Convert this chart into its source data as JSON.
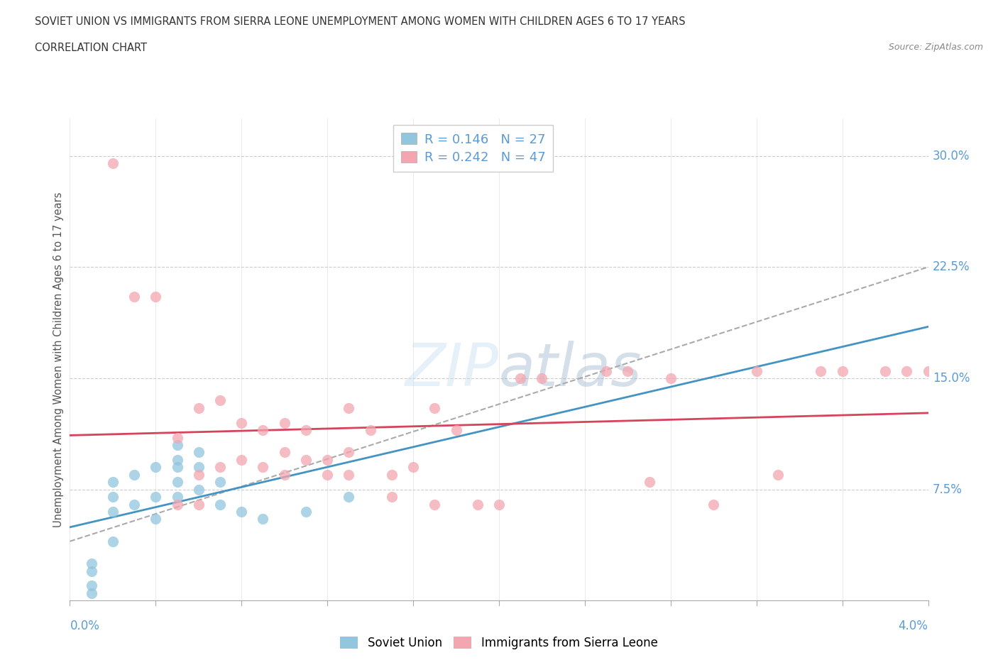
{
  "title_line1": "SOVIET UNION VS IMMIGRANTS FROM SIERRA LEONE UNEMPLOYMENT AMONG WOMEN WITH CHILDREN AGES 6 TO 17 YEARS",
  "title_line2": "CORRELATION CHART",
  "source": "Source: ZipAtlas.com",
  "xlabel_bottom_left": "0.0%",
  "xlabel_bottom_right": "4.0%",
  "ylabel": "Unemployment Among Women with Children Ages 6 to 17 years",
  "ytick_labels": [
    "30.0%",
    "22.5%",
    "15.0%",
    "7.5%"
  ],
  "ytick_values": [
    0.3,
    0.225,
    0.15,
    0.075
  ],
  "xmin": 0.0,
  "xmax": 0.04,
  "ymin": 0.0,
  "ymax": 0.325,
  "watermark": "ZIPatlas",
  "legend_soviet_r": "0.146",
  "legend_soviet_n": "27",
  "legend_sierra_r": "0.242",
  "legend_sierra_n": "47",
  "soviet_color": "#92c5de",
  "sierra_color": "#f4a6b0",
  "soviet_line_color": "#4393c3",
  "sierra_line_color": "#d6435a",
  "dashed_line_color": "#aaaaaa",
  "soviet_x": [
    0.001,
    0.001,
    0.001,
    0.001,
    0.002,
    0.002,
    0.002,
    0.002,
    0.003,
    0.003,
    0.004,
    0.004,
    0.004,
    0.005,
    0.005,
    0.005,
    0.005,
    0.005,
    0.006,
    0.006,
    0.006,
    0.007,
    0.007,
    0.008,
    0.009,
    0.011,
    0.013
  ],
  "soviet_y": [
    0.005,
    0.01,
    0.02,
    0.025,
    0.04,
    0.06,
    0.07,
    0.08,
    0.065,
    0.085,
    0.055,
    0.07,
    0.09,
    0.07,
    0.08,
    0.09,
    0.095,
    0.105,
    0.075,
    0.09,
    0.1,
    0.08,
    0.065,
    0.06,
    0.055,
    0.06,
    0.07
  ],
  "sierra_x": [
    0.002,
    0.003,
    0.004,
    0.005,
    0.005,
    0.006,
    0.006,
    0.006,
    0.007,
    0.007,
    0.008,
    0.008,
    0.009,
    0.009,
    0.01,
    0.01,
    0.01,
    0.011,
    0.011,
    0.012,
    0.012,
    0.013,
    0.013,
    0.013,
    0.014,
    0.015,
    0.015,
    0.016,
    0.017,
    0.017,
    0.018,
    0.019,
    0.02,
    0.021,
    0.022,
    0.025,
    0.026,
    0.027,
    0.028,
    0.03,
    0.032,
    0.033,
    0.035,
    0.036,
    0.038,
    0.039,
    0.04
  ],
  "sierra_y": [
    0.295,
    0.205,
    0.205,
    0.065,
    0.11,
    0.065,
    0.085,
    0.13,
    0.09,
    0.135,
    0.095,
    0.12,
    0.09,
    0.115,
    0.085,
    0.1,
    0.12,
    0.095,
    0.115,
    0.085,
    0.095,
    0.085,
    0.1,
    0.13,
    0.115,
    0.07,
    0.085,
    0.09,
    0.065,
    0.13,
    0.115,
    0.065,
    0.065,
    0.15,
    0.15,
    0.155,
    0.155,
    0.08,
    0.15,
    0.065,
    0.155,
    0.085,
    0.155,
    0.155,
    0.155,
    0.155,
    0.155
  ]
}
